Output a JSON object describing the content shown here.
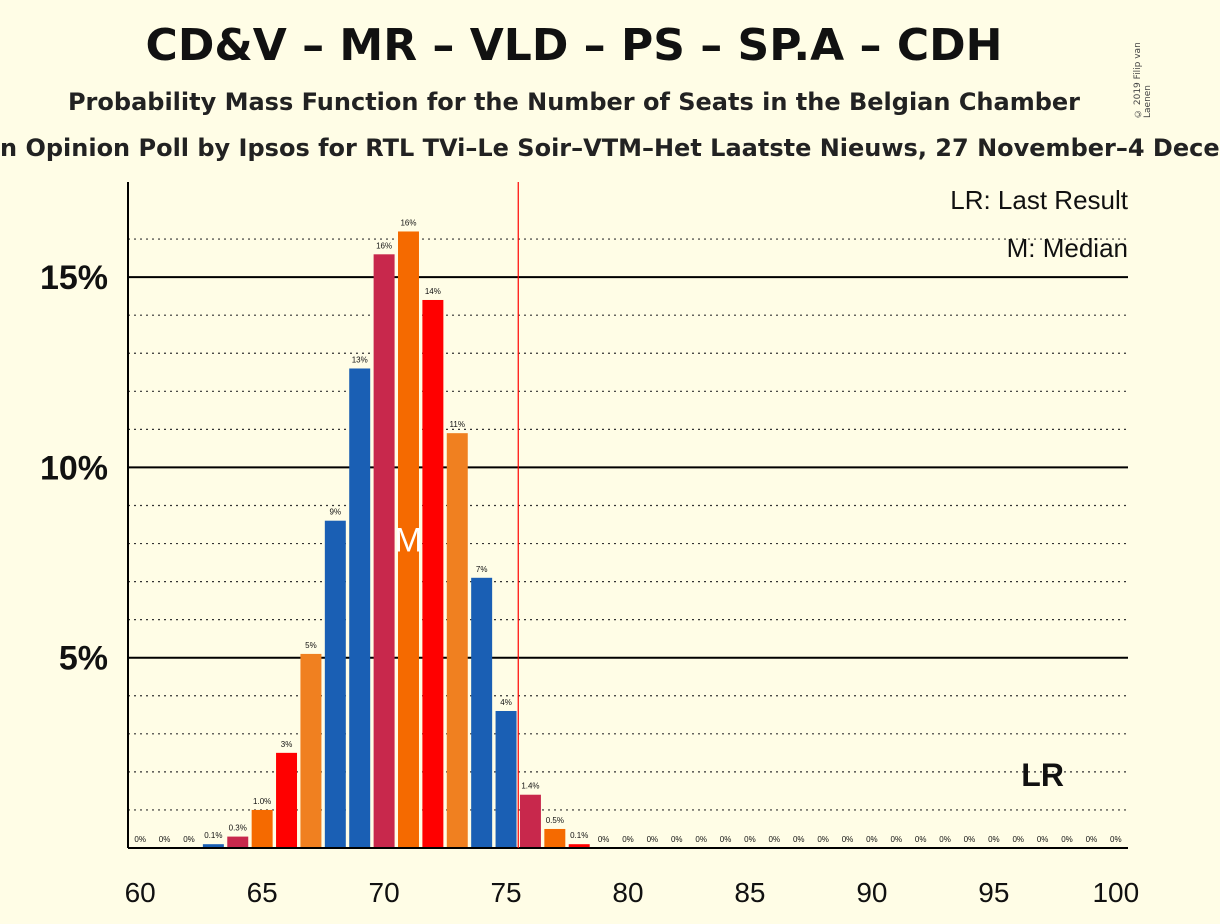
{
  "title": "CD&V – MR – VLD – PS – SP.A – CDH",
  "subtitle": "Probability Mass Function for the Number of Seats in the Belgian Chamber",
  "subsubtitle": "n Opinion Poll by Ipsos for RTL TVi–Le Soir–VTM–Het Laatste Nieuws, 27 November–4 Dece",
  "copyright": "© 2019 Filip van Laenen",
  "legend": {
    "last_result": "LR: Last Result",
    "median": "M: Median"
  },
  "colors": {
    "background": "#fffde6",
    "party_colors": [
      "#1a5fb4",
      "#c8284c",
      "#f56a00",
      "#ff0000",
      "#f08020"
    ],
    "last_result_line": "#ff0000"
  },
  "chart_data": {
    "type": "bar",
    "x": [
      60,
      61,
      62,
      63,
      64,
      65,
      66,
      67,
      68,
      69,
      70,
      71,
      72,
      73,
      74,
      75,
      76,
      77,
      78,
      79,
      80,
      81,
      82,
      83,
      84,
      85,
      86,
      87,
      88,
      89,
      90,
      91,
      92,
      93,
      94,
      95,
      96,
      97,
      98,
      99,
      100
    ],
    "values": [
      0,
      0,
      0,
      0.1,
      0.3,
      1.0,
      2.5,
      5.1,
      8.6,
      12.6,
      15.6,
      16.2,
      14.4,
      10.9,
      7.1,
      3.6,
      1.4,
      0.5,
      0.1,
      0,
      0,
      0,
      0,
      0,
      0,
      0,
      0,
      0,
      0,
      0,
      0,
      0,
      0,
      0,
      0,
      0,
      0,
      0,
      0,
      0,
      0
    ],
    "labels": [
      "0%",
      "0%",
      "0%",
      "0.1%",
      "0.3%",
      "1.0%",
      "3%",
      "5%",
      "9%",
      "13%",
      "16%",
      "16%",
      "14%",
      "11%",
      "7%",
      "4%",
      "1.4%",
      "0.5%",
      "0.1%",
      "0%",
      "0%",
      "0%",
      "0%",
      "0%",
      "0%",
      "0%",
      "0%",
      "0%",
      "0%",
      "0%",
      "0%",
      "0%",
      "0%",
      "0%",
      "0%",
      "0%",
      "0%",
      "0%",
      "0%",
      "0%",
      "0%"
    ],
    "bar_colors": [
      "#1a5fb4",
      "#c8284c",
      "#f56a00",
      "#1a5fb4",
      "#c8284c",
      "#f56a00",
      "#ff0000",
      "#f08020",
      "#1a5fb4",
      "#1a5fb4",
      "#c8284c",
      "#f56a00",
      "#ff0000",
      "#f08020",
      "#1a5fb4",
      "#1a5fb4",
      "#c8284c",
      "#f56a00",
      "#ff0000",
      "#f08020",
      "#1a5fb4",
      "#1a5fb4",
      "#c8284c",
      "#f56a00",
      "#ff0000",
      "#f08020",
      "#1a5fb4",
      "#1a5fb4",
      "#c8284c",
      "#f56a00",
      "#ff0000",
      "#f08020",
      "#1a5fb4",
      "#1a5fb4",
      "#c8284c",
      "#f56a00",
      "#ff0000",
      "#f08020",
      "#1a5fb4",
      "#1a5fb4",
      "#c8284c"
    ],
    "x_ticks": [
      60,
      65,
      70,
      75,
      80,
      85,
      90,
      95,
      100
    ],
    "y_ticks": [
      {
        "value": 5,
        "label": "5%"
      },
      {
        "value": 10,
        "label": "10%"
      },
      {
        "value": 15,
        "label": "15%"
      }
    ],
    "ylim": [
      0,
      17.5
    ],
    "xlim": [
      59.5,
      100.5
    ],
    "median": 71,
    "median_label": "M",
    "last_result": 97,
    "last_result_label": "LR",
    "threshold_line": 75.5,
    "xlabel": "",
    "ylabel": ""
  }
}
